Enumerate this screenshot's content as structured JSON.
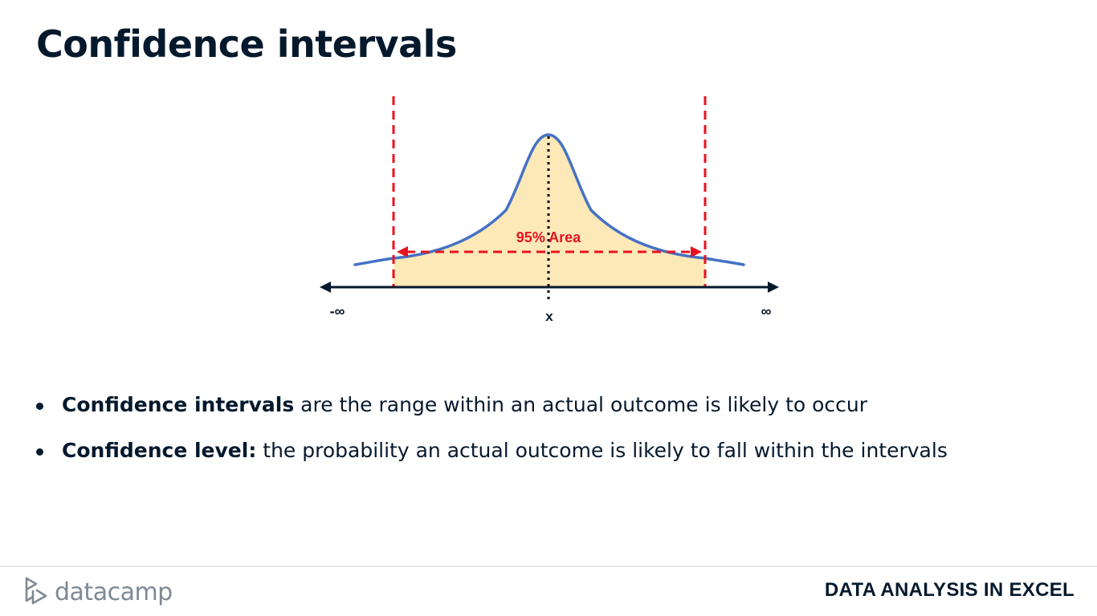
{
  "slide": {
    "title": "Confidence intervals"
  },
  "diagram": {
    "area_label": "95% Area",
    "area_percent": 95,
    "axis_left_label": "-∞",
    "axis_center_label": "x",
    "axis_right_label": "∞",
    "colors": {
      "curve": "#4472c4",
      "fill": "#fde9b8",
      "bounds": "#e8131f",
      "axis": "#05192d"
    }
  },
  "bullets": [
    {
      "term": "Confidence intervals",
      "text": " are the range within an actual outcome is likely to occur"
    },
    {
      "term": "Confidence level:",
      "text": " the probability an actual outcome is likely to fall within the intervals"
    }
  ],
  "footer": {
    "logo_text": "datacamp",
    "course": "DATA ANALYSIS IN EXCEL"
  }
}
